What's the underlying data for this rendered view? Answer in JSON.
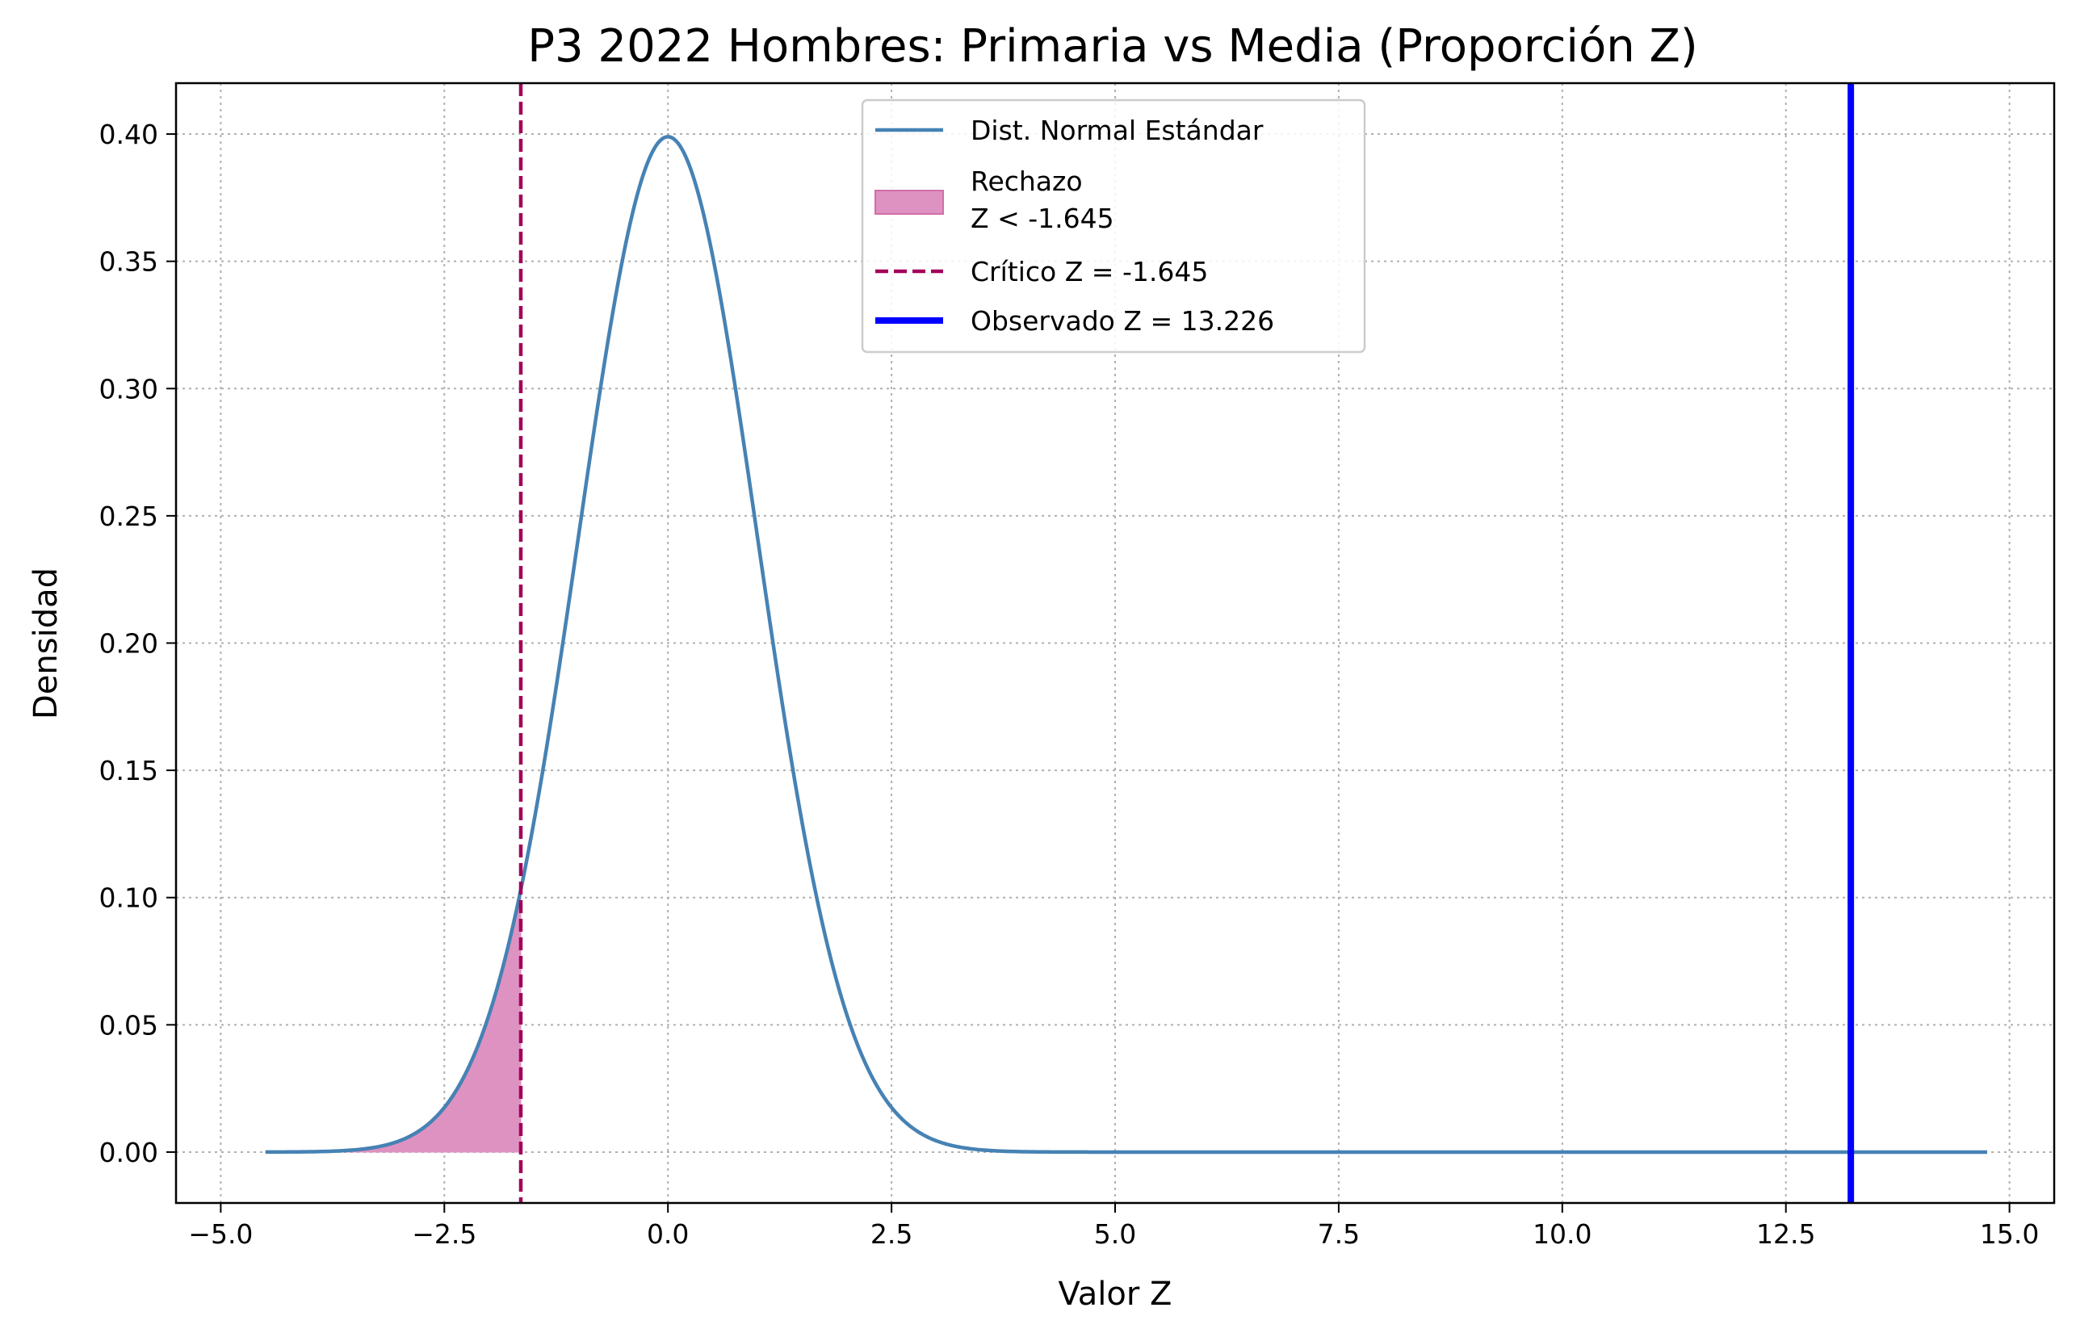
{
  "chart_data": {
    "type": "line",
    "title": "P3 2022 Hombres: Primaria vs Media (Proporción Z)",
    "xlabel": "Valor Z",
    "ylabel": "Densidad",
    "xlim": [
      -5.5,
      15.5
    ],
    "ylim": [
      -0.02,
      0.42
    ],
    "xticks": [
      -5.0,
      -2.5,
      0.0,
      2.5,
      5.0,
      7.5,
      10.0,
      12.5,
      15.0
    ],
    "xtick_labels": [
      "−5.0",
      "−2.5",
      "0.0",
      "2.5",
      "5.0",
      "7.5",
      "10.0",
      "12.5",
      "15.0"
    ],
    "yticks": [
      0.0,
      0.05,
      0.1,
      0.15,
      0.2,
      0.25,
      0.3,
      0.35,
      0.4
    ],
    "ytick_labels": [
      "0.00",
      "0.05",
      "0.10",
      "0.15",
      "0.20",
      "0.25",
      "0.30",
      "0.35",
      "0.40"
    ],
    "grid": true,
    "legend_position": "top-center",
    "series": [
      {
        "name": "Dist. Normal Estándar",
        "kind": "line",
        "distribution": "standard-normal-pdf",
        "x_range": [
          -4.5,
          14.75
        ],
        "color": "#4682b4"
      },
      {
        "name": "Rechazo\nZ < -1.645",
        "kind": "filled-area",
        "x_range": [
          -4.5,
          -1.645
        ],
        "color": "#de92c1"
      },
      {
        "name": "Crítico Z = -1.645",
        "kind": "vertical-dashed-line",
        "x": -1.645,
        "color": "#a3005a"
      },
      {
        "name": "Observado Z = 13.226",
        "kind": "vertical-line",
        "x": 13.226,
        "color": "#0000ff"
      }
    ]
  }
}
